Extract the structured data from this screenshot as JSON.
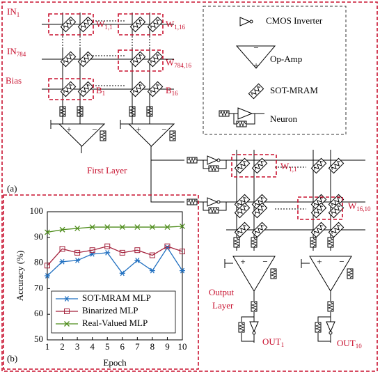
{
  "diagram": {
    "panel_a": "(a)",
    "panel_b": "(b)",
    "input_1": {
      "text": "IN",
      "sub": "1"
    },
    "input_784": {
      "text": "IN",
      "sub": "784"
    },
    "bias": "Bias",
    "w_1_1": {
      "text": "W",
      "sub": "1,1"
    },
    "w_1_16": {
      "text": "W",
      "sub": "1,16"
    },
    "w_784_16": {
      "text": "W",
      "sub": "784,16"
    },
    "b_1": {
      "text": "B",
      "sub": "1"
    },
    "b_16": {
      "text": "B",
      "sub": "16"
    },
    "first_layer": "First Layer",
    "w2_1_1": {
      "text": "W",
      "sub": "1,1"
    },
    "w2_16_10": {
      "text": "W",
      "sub": "16,10"
    },
    "output_layer": [
      "Output",
      "Layer"
    ],
    "out_1": {
      "text": "OUT",
      "sub": "1"
    },
    "out_10": {
      "text": "OUT",
      "sub": "10"
    },
    "legend": {
      "inverter": "CMOS Inverter",
      "op_amp": "Op-Amp",
      "sot_mram": "SOT-MRAM",
      "neuron": "Neuron",
      "minus": "−",
      "plus": "+"
    }
  },
  "chart_data": {
    "type": "line",
    "x_label": "Epoch",
    "y_label": "Accuracy (%)",
    "x": [
      1,
      2,
      3,
      4,
      5,
      6,
      7,
      8,
      9,
      10
    ],
    "xlim": [
      1,
      10
    ],
    "xticks": [
      1,
      2,
      3,
      4,
      5,
      6,
      7,
      8,
      9,
      10
    ],
    "ylim": [
      50,
      100
    ],
    "yticks": [
      50,
      60,
      70,
      80,
      90,
      100
    ],
    "grid": false,
    "series": [
      {
        "name": "SOT-MRAM MLP",
        "color": "#1f6fc0",
        "marker": "star",
        "values": [
          75,
          80.5,
          81,
          83.5,
          84,
          76,
          81,
          77,
          86,
          77
        ]
      },
      {
        "name": "Binarized MLP",
        "color": "#a3203a",
        "marker": "square",
        "values": [
          79,
          85.5,
          84,
          85,
          86.5,
          84,
          85,
          83,
          86.5,
          84.5
        ]
      },
      {
        "name": "Real-Valued MLP",
        "color": "#4d8c1a",
        "marker": "x",
        "values": [
          92,
          93,
          93.5,
          94,
          94,
          94,
          94,
          94,
          94,
          94.3
        ]
      }
    ]
  }
}
